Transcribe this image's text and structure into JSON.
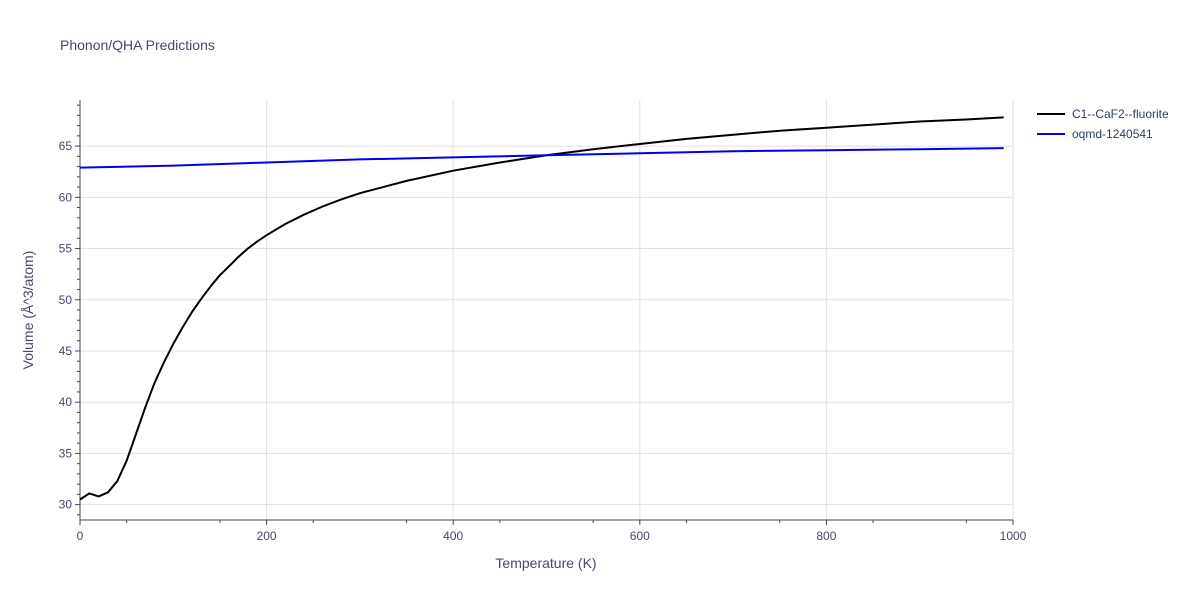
{
  "chart_data": {
    "type": "line",
    "title": "Phonon/QHA Predictions",
    "xlabel": "Temperature (K)",
    "ylabel": "Volume (Å^3/atom)",
    "xlim": [
      0,
      1000
    ],
    "ylim": [
      28.5,
      69.5
    ],
    "xticks": [
      0,
      200,
      400,
      600,
      800,
      1000
    ],
    "yticks": [
      30,
      35,
      40,
      45,
      50,
      55,
      60,
      65
    ],
    "grid": true,
    "legend_position": "top-right",
    "series": [
      {
        "name": "C1--CaF2--fluorite",
        "color": "#000000",
        "x": [
          0,
          10,
          20,
          30,
          40,
          50,
          60,
          70,
          80,
          90,
          100,
          110,
          120,
          130,
          140,
          150,
          160,
          170,
          180,
          190,
          200,
          220,
          240,
          260,
          280,
          300,
          350,
          400,
          450,
          500,
          550,
          600,
          650,
          700,
          750,
          800,
          850,
          900,
          950,
          990
        ],
        "y": [
          30.5,
          31.1,
          30.8,
          31.2,
          32.3,
          34.3,
          36.9,
          39.5,
          41.9,
          43.9,
          45.7,
          47.3,
          48.8,
          50.1,
          51.3,
          52.4,
          53.3,
          54.2,
          55.0,
          55.7,
          56.3,
          57.4,
          58.3,
          59.1,
          59.8,
          60.4,
          61.6,
          62.6,
          63.4,
          64.1,
          64.7,
          65.2,
          65.7,
          66.1,
          66.5,
          66.8,
          67.1,
          67.4,
          67.6,
          67.8
        ]
      },
      {
        "name": "oqmd-1240541",
        "color": "#0000ee",
        "x": [
          0,
          100,
          200,
          300,
          400,
          500,
          600,
          700,
          800,
          900,
          990
        ],
        "y": [
          62.9,
          63.1,
          63.4,
          63.7,
          63.9,
          64.1,
          64.3,
          64.5,
          64.6,
          64.7,
          64.8
        ]
      }
    ]
  }
}
